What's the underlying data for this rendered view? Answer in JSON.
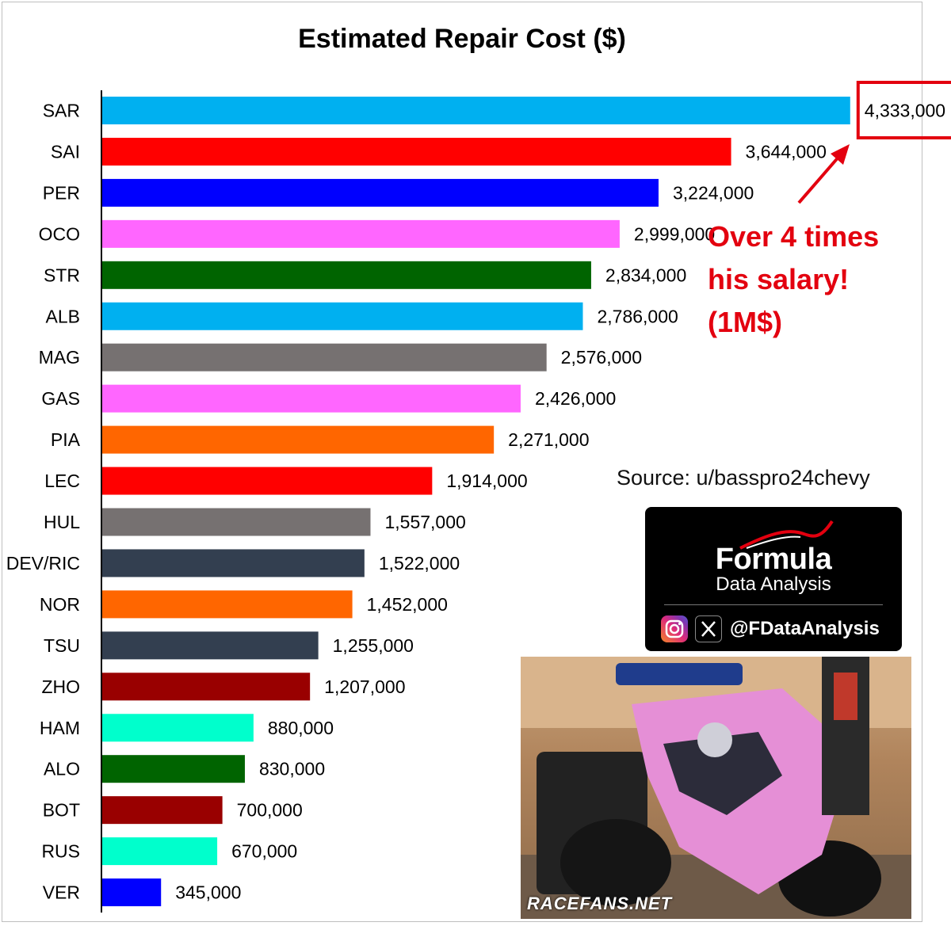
{
  "chart_data": {
    "type": "bar",
    "orientation": "horizontal",
    "title": "Estimated Repair Cost ($)",
    "xlim": [
      0,
      4600000
    ],
    "grid": false,
    "categories": [
      "SAR",
      "SAI",
      "PER",
      "OCO",
      "STR",
      "ALB",
      "MAG",
      "GAS",
      "PIA",
      "LEC",
      "HUL",
      "DEV/RIC",
      "NOR",
      "TSU",
      "ZHO",
      "HAM",
      "ALO",
      "BOT",
      "RUS",
      "VER"
    ],
    "values": [
      4333000,
      3644000,
      3224000,
      2999000,
      2834000,
      2786000,
      2576000,
      2426000,
      2271000,
      1914000,
      1557000,
      1522000,
      1452000,
      1255000,
      1207000,
      880000,
      830000,
      700000,
      670000,
      345000
    ],
    "value_labels": [
      "4,333,000",
      "3,644,000",
      "3,224,000",
      "2,999,000",
      "2,834,000",
      "2,786,000",
      "2,576,000",
      "2,426,000",
      "2,271,000",
      "1,914,000",
      "1,557,000",
      "1,522,000",
      "1,452,000",
      "1,255,000",
      "1,207,000",
      "880,000",
      "830,000",
      "700,000",
      "670,000",
      "345,000"
    ],
    "colors": [
      "#00b0f0",
      "#ff0000",
      "#0000ff",
      "#ff66ff",
      "#006400",
      "#00b0f0",
      "#767171",
      "#ff66ff",
      "#ff6600",
      "#ff0000",
      "#767171",
      "#333f50",
      "#ff6600",
      "#333f50",
      "#990000",
      "#00ffcc",
      "#006400",
      "#990000",
      "#00ffcc",
      "#0000ff"
    ],
    "highlight_category": "SAR",
    "annotation": "Over 4 times his salary! (1M$)"
  },
  "callout": {
    "lines": [
      "Over 4 times",
      "his salary!",
      "(1M$)"
    ],
    "color": "#e3000f"
  },
  "source": "Source: u/basspro24chevy",
  "branding": {
    "name": "Formula",
    "subtitle": "Data Analysis",
    "handle": "@FDataAnalysis",
    "icons": [
      "instagram-icon",
      "x-icon"
    ]
  },
  "photo": {
    "caption": "RACEFANS.NET"
  }
}
